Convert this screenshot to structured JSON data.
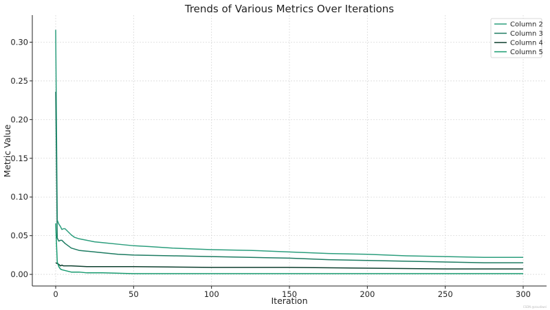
{
  "chart_data": {
    "type": "line",
    "title": "Trends of Various Metrics Over Iterations",
    "xlabel": "Iteration",
    "ylabel": "Metric Value",
    "xlim": [
      -15,
      315
    ],
    "ylim": [
      -0.015,
      0.335
    ],
    "x_ticks": [
      0,
      50,
      100,
      150,
      200,
      250,
      300
    ],
    "y_ticks": [
      0.0,
      0.05,
      0.1,
      0.15,
      0.2,
      0.25,
      0.3
    ],
    "grid": true,
    "legend_position": "top-right",
    "watermark": "CSDN @zoudiwei",
    "series": [
      {
        "name": "Column 2",
        "color": "#2a9d7c",
        "points": [
          [
            0,
            0.316
          ],
          [
            1,
            0.07
          ],
          [
            2,
            0.065
          ],
          [
            3,
            0.062
          ],
          [
            4,
            0.058
          ],
          [
            5,
            0.059
          ],
          [
            6,
            0.059
          ],
          [
            7,
            0.057
          ],
          [
            8,
            0.055
          ],
          [
            10,
            0.051
          ],
          [
            12,
            0.048
          ],
          [
            15,
            0.046
          ],
          [
            20,
            0.044
          ],
          [
            25,
            0.042
          ],
          [
            30,
            0.041
          ],
          [
            40,
            0.039
          ],
          [
            50,
            0.037
          ],
          [
            60,
            0.036
          ],
          [
            75,
            0.034
          ],
          [
            100,
            0.032
          ],
          [
            125,
            0.031
          ],
          [
            150,
            0.029
          ],
          [
            175,
            0.027
          ],
          [
            200,
            0.026
          ],
          [
            225,
            0.024
          ],
          [
            250,
            0.023
          ],
          [
            275,
            0.022
          ],
          [
            300,
            0.022
          ]
        ]
      },
      {
        "name": "Column 3",
        "color": "#1b7a60",
        "points": [
          [
            0,
            0.236
          ],
          [
            1,
            0.047
          ],
          [
            2,
            0.043
          ],
          [
            3,
            0.044
          ],
          [
            4,
            0.044
          ],
          [
            5,
            0.042
          ],
          [
            6,
            0.04
          ],
          [
            8,
            0.037
          ],
          [
            10,
            0.034
          ],
          [
            15,
            0.031
          ],
          [
            20,
            0.03
          ],
          [
            30,
            0.028
          ],
          [
            40,
            0.026
          ],
          [
            50,
            0.025
          ],
          [
            75,
            0.024
          ],
          [
            100,
            0.023
          ],
          [
            125,
            0.022
          ],
          [
            150,
            0.021
          ],
          [
            175,
            0.019
          ],
          [
            200,
            0.018
          ],
          [
            225,
            0.017
          ],
          [
            250,
            0.016
          ],
          [
            275,
            0.015
          ],
          [
            300,
            0.015
          ]
        ]
      },
      {
        "name": "Column 4",
        "color": "#0b3d2c",
        "points": [
          [
            0,
            0.015
          ],
          [
            1,
            0.014
          ],
          [
            2,
            0.013
          ],
          [
            3,
            0.011
          ],
          [
            4,
            0.012
          ],
          [
            5,
            0.011
          ],
          [
            10,
            0.011
          ],
          [
            20,
            0.01
          ],
          [
            50,
            0.01
          ],
          [
            100,
            0.009
          ],
          [
            150,
            0.009
          ],
          [
            200,
            0.008
          ],
          [
            250,
            0.007
          ],
          [
            300,
            0.007
          ]
        ]
      },
      {
        "name": "Column 5",
        "color": "#159a6e",
        "points": [
          [
            0,
            0.066
          ],
          [
            1,
            0.016
          ],
          [
            2,
            0.01
          ],
          [
            3,
            0.007
          ],
          [
            4,
            0.006
          ],
          [
            6,
            0.005
          ],
          [
            8,
            0.004
          ],
          [
            10,
            0.003
          ],
          [
            15,
            0.003
          ],
          [
            20,
            0.002
          ],
          [
            30,
            0.002
          ],
          [
            50,
            0.001
          ],
          [
            100,
            0.001
          ],
          [
            150,
            0.001
          ],
          [
            200,
            0.001
          ],
          [
            250,
            0.001
          ],
          [
            300,
            0.001
          ]
        ]
      }
    ]
  }
}
